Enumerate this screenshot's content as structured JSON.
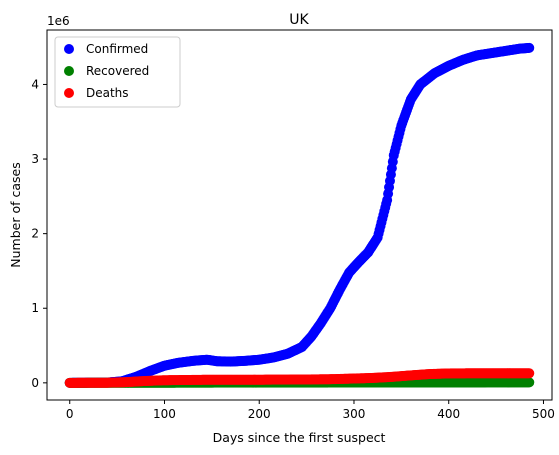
{
  "chart_data": {
    "type": "scatter",
    "title": "UK",
    "xlabel": "Days since the first suspect",
    "ylabel": "Number of cases",
    "y_offset_label": "1e6",
    "y_multiplier": 1000000,
    "xlim": [
      -24,
      509
    ],
    "ylim": [
      -230000,
      4730000
    ],
    "x_ticks": [
      0,
      100,
      200,
      300,
      400,
      500
    ],
    "y_ticks": [
      0,
      1,
      2,
      3,
      4
    ],
    "grid": false,
    "legend_placement": "top-left",
    "series": [
      {
        "name": "Confirmed",
        "color": "#0000ff",
        "points": [
          [
            0,
            0
          ],
          [
            40,
            5000
          ],
          [
            55,
            20000
          ],
          [
            70,
            80000
          ],
          [
            85,
            160000
          ],
          [
            100,
            230000
          ],
          [
            115,
            270000
          ],
          [
            130,
            295000
          ],
          [
            145,
            310000
          ],
          [
            155,
            290000
          ],
          [
            170,
            285000
          ],
          [
            185,
            295000
          ],
          [
            200,
            310000
          ],
          [
            215,
            340000
          ],
          [
            230,
            390000
          ],
          [
            245,
            480000
          ],
          [
            255,
            620000
          ],
          [
            265,
            800000
          ],
          [
            275,
            1000000
          ],
          [
            285,
            1250000
          ],
          [
            295,
            1480000
          ],
          [
            305,
            1620000
          ],
          [
            315,
            1750000
          ],
          [
            325,
            1950000
          ],
          [
            335,
            2450000
          ],
          [
            342,
            3050000
          ],
          [
            350,
            3450000
          ],
          [
            360,
            3800000
          ],
          [
            370,
            4000000
          ],
          [
            385,
            4150000
          ],
          [
            400,
            4250000
          ],
          [
            415,
            4330000
          ],
          [
            430,
            4390000
          ],
          [
            445,
            4420000
          ],
          [
            460,
            4450000
          ],
          [
            475,
            4480000
          ],
          [
            485,
            4490000
          ]
        ]
      },
      {
        "name": "Recovered",
        "color": "#008000",
        "points": [
          [
            0,
            0
          ],
          [
            100,
            2000
          ],
          [
            200,
            3000
          ],
          [
            300,
            4000
          ],
          [
            400,
            5000
          ],
          [
            485,
            6000
          ]
        ]
      },
      {
        "name": "Deaths",
        "color": "#ff0000",
        "points": [
          [
            0,
            0
          ],
          [
            40,
            2000
          ],
          [
            60,
            10000
          ],
          [
            80,
            25000
          ],
          [
            100,
            35000
          ],
          [
            150,
            42000
          ],
          [
            200,
            42000
          ],
          [
            250,
            45000
          ],
          [
            280,
            50000
          ],
          [
            300,
            58000
          ],
          [
            320,
            66000
          ],
          [
            340,
            80000
          ],
          [
            360,
            100000
          ],
          [
            380,
            118000
          ],
          [
            400,
            126000
          ],
          [
            420,
            128000
          ],
          [
            450,
            128000
          ],
          [
            485,
            128000
          ]
        ]
      }
    ]
  }
}
